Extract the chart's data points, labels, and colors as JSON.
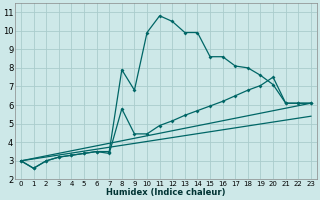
{
  "bg_color": "#cde8e8",
  "grid_color": "#aacccc",
  "line_color": "#006666",
  "xlabel": "Humidex (Indice chaleur)",
  "xlim": [
    -0.5,
    23.5
  ],
  "ylim": [
    2,
    11.5
  ],
  "xticks": [
    0,
    1,
    2,
    3,
    4,
    5,
    6,
    7,
    8,
    9,
    10,
    11,
    12,
    13,
    14,
    15,
    16,
    17,
    18,
    19,
    20,
    21,
    22,
    23
  ],
  "yticks": [
    2,
    3,
    4,
    5,
    6,
    7,
    8,
    9,
    10,
    11
  ],
  "curve1_x": [
    0,
    1,
    2,
    3,
    4,
    5,
    6,
    7,
    8,
    9,
    10,
    11,
    12,
    13,
    14,
    15,
    16,
    17,
    18,
    19,
    20,
    21,
    22,
    23
  ],
  "curve1_y": [
    3.0,
    2.6,
    3.0,
    3.2,
    3.3,
    3.4,
    3.5,
    3.5,
    7.9,
    6.8,
    9.9,
    10.8,
    10.5,
    9.9,
    9.9,
    8.6,
    8.6,
    8.1,
    8.0,
    7.6,
    7.1,
    6.1,
    6.1,
    6.1
  ],
  "curve2_x": [
    0,
    1,
    2,
    3,
    4,
    5,
    6,
    7,
    8,
    9,
    10,
    11,
    12,
    13,
    14,
    15,
    16,
    17,
    18,
    19,
    20,
    21,
    22,
    23
  ],
  "curve2_y": [
    3.0,
    2.6,
    3.0,
    3.2,
    3.3,
    3.4,
    3.5,
    3.4,
    5.8,
    4.45,
    4.45,
    4.9,
    5.15,
    5.45,
    5.7,
    5.95,
    6.2,
    6.5,
    6.8,
    7.05,
    7.5,
    6.1,
    6.1,
    6.1
  ],
  "line3_x": [
    0,
    23
  ],
  "line3_y": [
    3.0,
    6.1
  ],
  "line4_x": [
    0,
    23
  ],
  "line4_y": [
    3.0,
    5.4
  ]
}
